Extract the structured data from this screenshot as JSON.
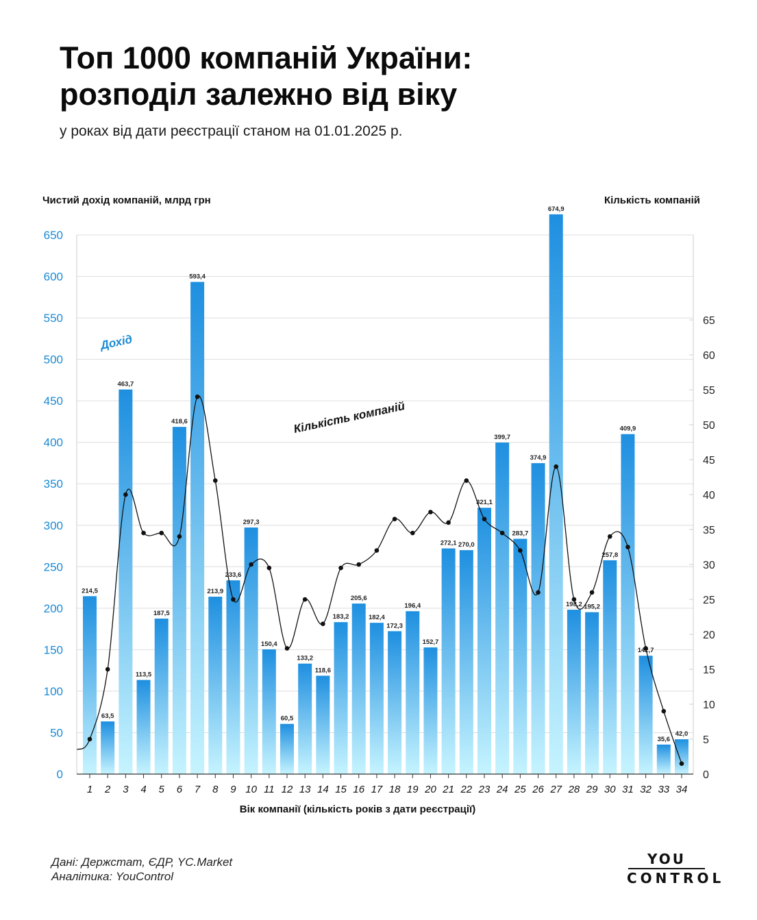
{
  "title_lines": [
    "Топ 1000 компаній України:",
    "розподіл залежно від віку"
  ],
  "subtitle": "у роках від дати реєстрації станом на 01.01.2025 р.",
  "footer": {
    "source": "Дані: Держстат, ЄДР, YC.Market",
    "analytics": "Аналітика: YouControl"
  },
  "logo": {
    "line1": "YOU",
    "line2": "CONTROL"
  },
  "chart_data": {
    "type": "bar",
    "categories": [
      "1",
      "2",
      "3",
      "4",
      "5",
      "6",
      "7",
      "8",
      "9",
      "10",
      "11",
      "12",
      "13",
      "14",
      "15",
      "16",
      "17",
      "18",
      "19",
      "20",
      "21",
      "22",
      "23",
      "24",
      "25",
      "26",
      "27",
      "28",
      "29",
      "30",
      "31",
      "32",
      "33",
      "34"
    ],
    "series": [
      {
        "name": "Дохід",
        "type": "bar",
        "axis": "left",
        "values": [
          214.5,
          63.5,
          463.7,
          113.5,
          187.5,
          418.6,
          593.4,
          213.9,
          233.6,
          297.3,
          150.4,
          60.5,
          133.2,
          118.6,
          183.2,
          205.6,
          182.4,
          172.3,
          196.4,
          152.7,
          272.1,
          270.0,
          321.1,
          399.7,
          283.7,
          374.9,
          674.9,
          198.2,
          195.2,
          257.8,
          409.9,
          142.7,
          35.6,
          42.0
        ],
        "labels": [
          "214,5",
          "63,5",
          "463,7",
          "113,5",
          "187,5",
          "418,6",
          "593,4",
          "213,9",
          "233,6",
          "297,3",
          "150,4",
          "60,5",
          "133,2",
          "118,6",
          "183,2",
          "205,6",
          "182,4",
          "172,3",
          "196,4",
          "152,7",
          "272,1",
          "270,0",
          "321,1",
          "399,7",
          "283,7",
          "374,9",
          "674,9",
          "198,2",
          "195,2",
          "257,8",
          "409,9",
          "142,7",
          "35,6",
          "42,0"
        ]
      },
      {
        "name": "Кількість компаній",
        "type": "line",
        "axis": "right",
        "values": [
          5,
          15,
          40,
          34.5,
          34.5,
          34,
          54,
          42,
          25,
          30,
          29.5,
          18,
          25,
          21.5,
          29.5,
          30,
          32,
          36.5,
          34.5,
          37.5,
          36,
          42,
          36.5,
          34.5,
          32,
          26,
          44,
          25,
          26,
          34,
          32.5,
          18,
          9,
          1.5
        ]
      }
    ],
    "xlabel": "Вік компанії (кількість років з дати реєстрації)",
    "ylabel": "Чистий дохід компаній, млрд грн",
    "y2label": "Кількість компаній",
    "ylim": [
      0,
      650
    ],
    "yticks": [
      0,
      50,
      100,
      150,
      200,
      250,
      300,
      350,
      400,
      450,
      500,
      550,
      600,
      650
    ],
    "y2lim": [
      0,
      65
    ],
    "y2ticks": [
      0,
      5,
      10,
      15,
      20,
      25,
      30,
      35,
      40,
      45,
      50,
      55,
      60,
      65
    ],
    "grid": true,
    "colors": {
      "bar_top": "#1e8fe0",
      "bar_bottom": "#c6f4ff",
      "axis_text": "#1a8ad4",
      "line": "#111111"
    }
  }
}
